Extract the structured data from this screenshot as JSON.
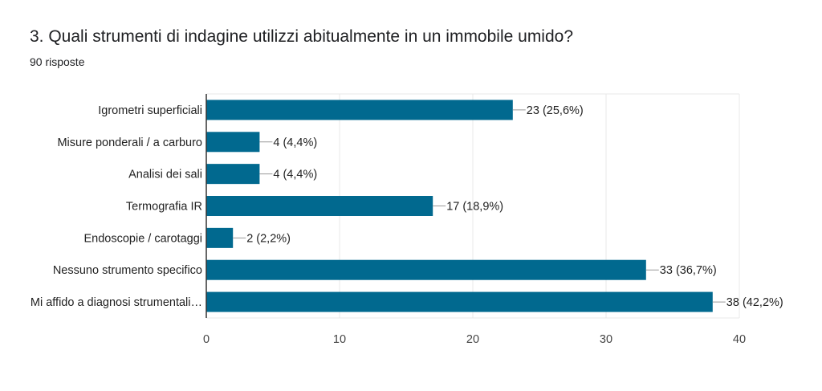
{
  "header": {
    "title": "3. Quali strumenti di indagine utilizzi abitualmente in un immobile umido?",
    "subtitle": "90 risposte"
  },
  "colors": {
    "bar": "#01698f",
    "grid": "#e8e8e8",
    "axis": "#333333",
    "leader": "#999999"
  },
  "chart_data": {
    "type": "bar",
    "orientation": "horizontal",
    "title": "3. Quali strumenti di indagine utilizzi abitualmente in un immobile umido?",
    "subtitle": "90 risposte",
    "categories": [
      "Igrometri superficiali",
      "Misure ponderali / a carburo",
      "Analisi dei sali",
      "Termografia IR",
      "Endoscopie / carotaggi",
      "Nessuno strumento specifico",
      "Mi affido a diagnosi strumentali…"
    ],
    "values": [
      23,
      4,
      4,
      17,
      2,
      33,
      38
    ],
    "value_labels": [
      "23 (25,6%)",
      "4 (4,4%)",
      "4 (4,4%)",
      "17 (18,9%)",
      "2 (2,2%)",
      "33 (36,7%)",
      "38 (42,2%)"
    ],
    "xlim": [
      0,
      40
    ],
    "xticks": [
      0,
      10,
      20,
      30,
      40
    ],
    "xtick_labels": [
      "0",
      "10",
      "20",
      "30",
      "40"
    ],
    "grid": true
  }
}
